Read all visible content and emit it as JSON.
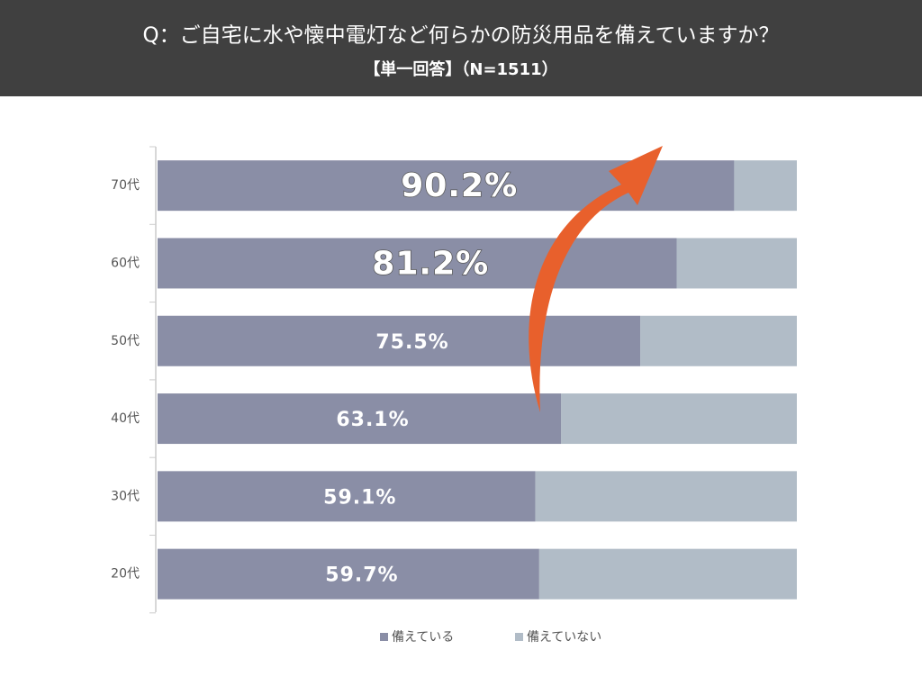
{
  "chart_data": {
    "type": "stacked-bar-horizontal",
    "title": "Q：ご自宅に水や懐中電灯など何らかの防災用品を備えていますか？",
    "subtitle": "【単一回答】（N=1511）",
    "categories": [
      "70代",
      "60代",
      "50代",
      "40代",
      "30代",
      "20代"
    ],
    "series": [
      {
        "name": "備えている",
        "color": "#8a8ea6",
        "values": [
          90.2,
          81.2,
          75.5,
          63.1,
          59.1,
          59.7
        ],
        "value_labels": [
          "90.2%",
          "81.2%",
          "75.5%",
          "63.1%",
          "59.1%",
          "59.7%"
        ]
      },
      {
        "name": "備えていない",
        "color": "#b1bcc7",
        "values": [
          9.8,
          18.8,
          24.5,
          36.9,
          40.9,
          40.3
        ]
      }
    ],
    "xlim": [
      0,
      100
    ]
  }
}
